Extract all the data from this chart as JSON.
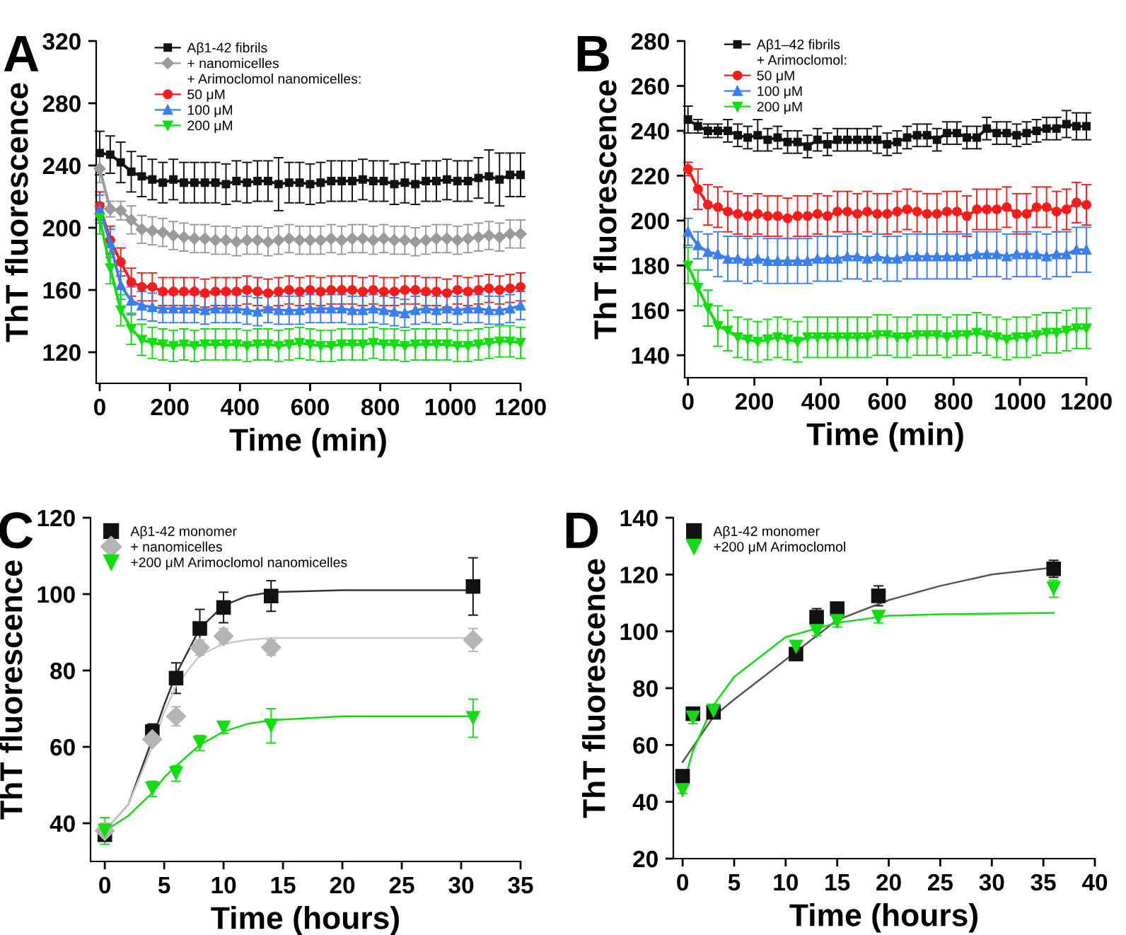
{
  "chart_data": [
    {
      "type": "line",
      "title": "A",
      "xlabel": "Time (min)",
      "ylabel": "ThT fluorescence",
      "xlim": [
        -10,
        1200
      ],
      "ylim": [
        100,
        320
      ],
      "xticks": [
        0,
        200,
        400,
        600,
        800,
        1000,
        1200
      ],
      "yticks": [
        120,
        160,
        200,
        240,
        280,
        320
      ],
      "legend": "top",
      "grid": false,
      "annotations": [
        "+ Arimoclomol nanomicelles:"
      ],
      "x": [
        0,
        30,
        60,
        90,
        120,
        150,
        180,
        210,
        240,
        270,
        300,
        330,
        360,
        390,
        420,
        450,
        480,
        510,
        540,
        570,
        600,
        630,
        660,
        690,
        720,
        750,
        780,
        810,
        840,
        870,
        900,
        930,
        960,
        990,
        1020,
        1050,
        1080,
        1110,
        1140,
        1170,
        1200
      ],
      "series": [
        {
          "name": "Aβ1-42 fibrils",
          "color": "#111111",
          "marker": "square",
          "values": [
            248,
            247,
            242,
            236,
            233,
            231,
            229,
            231,
            229,
            229,
            229,
            229,
            228,
            230,
            229,
            230,
            230,
            228,
            229,
            229,
            228,
            229,
            230,
            230,
            230,
            231,
            230,
            230,
            228,
            229,
            228,
            230,
            230,
            231,
            230,
            230,
            232,
            233,
            231,
            234,
            234
          ],
          "errors": [
            14,
            12,
            13,
            13,
            13,
            13,
            13,
            13,
            13,
            13,
            13,
            13,
            13,
            13,
            13,
            13,
            13,
            17,
            13,
            13,
            13,
            13,
            13,
            13,
            13,
            13,
            13,
            13,
            13,
            13,
            13,
            13,
            13,
            13,
            13,
            13,
            13,
            17,
            17,
            14,
            14
          ]
        },
        {
          "name": "+ nanomicelles",
          "color": "#9a9a9a",
          "marker": "diamond",
          "values": [
            238,
            212,
            211,
            205,
            199,
            198,
            197,
            195,
            194,
            193,
            193,
            192,
            192,
            191,
            192,
            192,
            191,
            192,
            193,
            192,
            192,
            192,
            193,
            192,
            193,
            193,
            192,
            193,
            192,
            192,
            191,
            192,
            193,
            193,
            192,
            193,
            194,
            195,
            194,
            196,
            196
          ],
          "errors": [
            9,
            5,
            6,
            9,
            9,
            9,
            9,
            9,
            9,
            9,
            9,
            9,
            9,
            9,
            9,
            9,
            9,
            9,
            9,
            9,
            9,
            9,
            9,
            9,
            9,
            9,
            9,
            9,
            9,
            9,
            9,
            9,
            9,
            9,
            9,
            9,
            9,
            9,
            9,
            9,
            9
          ]
        },
        {
          "name": "50 μM",
          "color": "#ff1a1a",
          "marker": "circle",
          "values": [
            214,
            192,
            178,
            165,
            162,
            162,
            159,
            159,
            159,
            159,
            158,
            159,
            159,
            159,
            160,
            159,
            158,
            159,
            160,
            159,
            160,
            159,
            160,
            160,
            160,
            159,
            160,
            159,
            159,
            160,
            160,
            159,
            159,
            158,
            160,
            159,
            160,
            161,
            160,
            161,
            162
          ],
          "errors": [
            9,
            9,
            9,
            9,
            9,
            9,
            9,
            9,
            9,
            9,
            9,
            9,
            9,
            9,
            9,
            9,
            9,
            9,
            9,
            9,
            9,
            9,
            9,
            9,
            9,
            9,
            9,
            9,
            9,
            9,
            9,
            9,
            9,
            9,
            9,
            9,
            9,
            9,
            9,
            9,
            9
          ]
        },
        {
          "name": "100 μM",
          "color": "#3a7ff0",
          "marker": "triangle",
          "values": [
            212,
            190,
            163,
            153,
            150,
            149,
            148,
            148,
            148,
            148,
            147,
            148,
            148,
            148,
            147,
            146,
            148,
            147,
            147,
            147,
            148,
            148,
            148,
            148,
            147,
            147,
            148,
            147,
            146,
            145,
            147,
            148,
            147,
            148,
            147,
            148,
            148,
            147,
            147,
            148,
            150
          ],
          "errors": [
            9,
            9,
            9,
            9,
            9,
            9,
            9,
            9,
            9,
            9,
            9,
            9,
            9,
            9,
            9,
            9,
            9,
            9,
            9,
            9,
            9,
            9,
            9,
            9,
            9,
            9,
            9,
            9,
            9,
            9,
            9,
            9,
            9,
            9,
            9,
            9,
            9,
            9,
            9,
            9,
            9
          ]
        },
        {
          "name": "200 μM",
          "color": "#11dd11",
          "marker": "triangle_down",
          "values": [
            206,
            174,
            147,
            135,
            128,
            126,
            125,
            124,
            125,
            124,
            125,
            125,
            125,
            125,
            124,
            125,
            125,
            124,
            125,
            126,
            125,
            124,
            124,
            125,
            125,
            125,
            126,
            125,
            125,
            124,
            125,
            125,
            125,
            125,
            124,
            124,
            125,
            126,
            127,
            127,
            126
          ],
          "errors": [
            10,
            10,
            10,
            10,
            10,
            10,
            10,
            10,
            10,
            10,
            10,
            10,
            10,
            10,
            10,
            10,
            10,
            10,
            10,
            10,
            10,
            10,
            10,
            10,
            10,
            10,
            10,
            10,
            10,
            10,
            10,
            10,
            10,
            10,
            10,
            10,
            10,
            10,
            10,
            10,
            10
          ]
        }
      ]
    },
    {
      "type": "line",
      "title": "B",
      "xlabel": "Time (min)",
      "ylabel": "ThT fluorescence",
      "xlim": [
        -10,
        1200
      ],
      "ylim": [
        130,
        280
      ],
      "xticks": [
        0,
        200,
        400,
        600,
        800,
        1000,
        1200
      ],
      "yticks": [
        140,
        160,
        180,
        200,
        220,
        240,
        260,
        280
      ],
      "legend": "top left",
      "grid": false,
      "annotations": [
        "+ Arimoclomol:"
      ],
      "x": [
        0,
        30,
        60,
        90,
        120,
        150,
        180,
        210,
        240,
        270,
        300,
        330,
        360,
        390,
        420,
        450,
        480,
        510,
        540,
        570,
        600,
        630,
        660,
        690,
        720,
        750,
        780,
        810,
        840,
        870,
        900,
        930,
        960,
        990,
        1020,
        1050,
        1080,
        1110,
        1140,
        1170,
        1200
      ],
      "series": [
        {
          "name": "Aβ1–42 fibrils",
          "color": "#111111",
          "marker": "square",
          "values": [
            245,
            242,
            240,
            240,
            240,
            238,
            237,
            238,
            236,
            237,
            235,
            235,
            233,
            236,
            234,
            236,
            236,
            236,
            236,
            236,
            234,
            235,
            237,
            238,
            238,
            236,
            239,
            239,
            237,
            237,
            241,
            239,
            239,
            238,
            239,
            240,
            241,
            241,
            243,
            242,
            242
          ],
          "errors": [
            6,
            3,
            3,
            3,
            5,
            5,
            5,
            7,
            5,
            5,
            5,
            5,
            5,
            5,
            5,
            5,
            5,
            5,
            5,
            6,
            5,
            5,
            5,
            5,
            5,
            5,
            5,
            5,
            5,
            5,
            5,
            5,
            5,
            5,
            5,
            5,
            5,
            5,
            6,
            6,
            6
          ]
        },
        {
          "name": "50 μM",
          "color": "#ff1a1a",
          "marker": "circle",
          "values": [
            223,
            214,
            207,
            206,
            204,
            203,
            202,
            203,
            202,
            202,
            201,
            202,
            202,
            203,
            202,
            204,
            204,
            203,
            204,
            203,
            203,
            204,
            205,
            204,
            203,
            203,
            204,
            204,
            202,
            205,
            205,
            205,
            206,
            203,
            203,
            206,
            206,
            204,
            205,
            208,
            207
          ],
          "errors": [
            3,
            9,
            9,
            9,
            9,
            9,
            9,
            9,
            9,
            9,
            9,
            9,
            9,
            9,
            9,
            9,
            9,
            9,
            9,
            9,
            9,
            9,
            9,
            9,
            9,
            9,
            9,
            9,
            9,
            9,
            9,
            9,
            9,
            9,
            9,
            9,
            9,
            9,
            9,
            9,
            9
          ]
        },
        {
          "name": "100 μM",
          "color": "#3a7ff0",
          "marker": "triangle",
          "values": [
            195,
            189,
            186,
            185,
            183,
            183,
            182,
            183,
            182,
            182,
            182,
            182,
            182,
            183,
            183,
            183,
            184,
            184,
            183,
            184,
            183,
            183,
            184,
            184,
            184,
            184,
            184,
            184,
            184,
            185,
            185,
            185,
            184,
            185,
            185,
            185,
            184,
            185,
            185,
            187,
            187
          ],
          "errors": [
            6,
            6,
            8,
            10,
            10,
            10,
            10,
            10,
            10,
            10,
            10,
            10,
            10,
            10,
            10,
            10,
            10,
            10,
            10,
            10,
            10,
            10,
            10,
            10,
            10,
            10,
            10,
            10,
            10,
            10,
            10,
            10,
            10,
            10,
            10,
            10,
            10,
            10,
            10,
            10,
            10
          ]
        },
        {
          "name": "200 μM",
          "color": "#11dd11",
          "marker": "triangle_down",
          "values": [
            180,
            170,
            161,
            153,
            151,
            148,
            147,
            146,
            147,
            148,
            147,
            146,
            148,
            148,
            148,
            148,
            148,
            148,
            148,
            149,
            149,
            148,
            148,
            149,
            149,
            149,
            148,
            149,
            149,
            150,
            149,
            148,
            147,
            148,
            148,
            149,
            150,
            150,
            151,
            152,
            152
          ],
          "errors": [
            8,
            8,
            8,
            9,
            9,
            9,
            9,
            9,
            9,
            9,
            9,
            9,
            9,
            9,
            9,
            9,
            9,
            9,
            9,
            9,
            9,
            9,
            9,
            9,
            9,
            9,
            9,
            9,
            9,
            9,
            9,
            9,
            9,
            9,
            9,
            9,
            9,
            9,
            9,
            9,
            9
          ]
        }
      ]
    },
    {
      "type": "scatter",
      "title": "C",
      "xlabel": "Time (hours)",
      "ylabel": "ThT fluorescence",
      "xlim": [
        -1.2,
        35
      ],
      "ylim": [
        30,
        120
      ],
      "xticks": [
        0,
        5,
        10,
        15,
        20,
        25,
        30,
        35
      ],
      "yticks": [
        40,
        60,
        80,
        100,
        120
      ],
      "legend": "top left",
      "grid": false,
      "x": [
        0,
        4,
        6,
        8,
        10,
        14,
        31
      ],
      "series": [
        {
          "name": "Aβ1-42 monomer",
          "color": "#111111",
          "marker": "square",
          "values": [
            37,
            64,
            78,
            91,
            96.5,
            99.5,
            102
          ],
          "errors": [
            null,
            2,
            4,
            5,
            4,
            4,
            7.5
          ]
        },
        {
          "name": "+ nanomicelles",
          "color": "#b4b4b4",
          "marker": "diamond",
          "values": [
            38,
            62,
            68,
            86,
            89,
            86,
            88
          ],
          "errors": [
            2,
            1,
            2.5,
            2,
            2,
            2,
            3
          ]
        },
        {
          "name": "+200 μM Arimoclomol nanomicelles",
          "color": "#11dd11",
          "marker": "triangle_down",
          "values": [
            38,
            49,
            53,
            61,
            65,
            65.5,
            67.5
          ],
          "errors": [
            3.5,
            2,
            2,
            2,
            1.5,
            4.5,
            5
          ]
        },
        {
          "type": "line",
          "color": "#333333",
          "x": [
            0,
            2,
            4,
            5,
            6,
            8,
            10,
            12,
            14,
            20,
            31
          ],
          "values": [
            38,
            45,
            62,
            71,
            79,
            91,
            97,
            99.5,
            100.5,
            101,
            101
          ]
        },
        {
          "type": "line",
          "color": "#c8c8c8",
          "x": [
            0,
            2,
            4,
            5,
            6,
            8,
            10,
            12,
            14,
            20,
            31
          ],
          "values": [
            38,
            45,
            60,
            69,
            76,
            84,
            87,
            88,
            88.5,
            88.5,
            88.5
          ]
        },
        {
          "type": "line",
          "color": "#11dd11",
          "x": [
            0,
            2,
            4,
            5,
            6,
            8,
            10,
            12,
            14,
            20,
            31
          ],
          "values": [
            38,
            42,
            48,
            52,
            55,
            60.5,
            64,
            66,
            67,
            68,
            68
          ]
        }
      ]
    },
    {
      "type": "scatter",
      "title": "D",
      "xlabel": "Time (hours)",
      "ylabel": "ThT fluorescence",
      "xlim": [
        -0.9,
        40
      ],
      "ylim": [
        20,
        140
      ],
      "xticks": [
        0,
        5,
        10,
        15,
        20,
        25,
        30,
        35,
        40
      ],
      "yticks": [
        20,
        40,
        60,
        80,
        100,
        120,
        140
      ],
      "legend": "top left",
      "grid": false,
      "x": [
        0,
        1,
        3,
        11,
        13,
        15,
        19,
        36
      ],
      "series": [
        {
          "name": "Aβ1-42 monomer",
          "color": "#111111",
          "marker": "square",
          "values": [
            49,
            71,
            71.5,
            92,
            105,
            108,
            112.5,
            122
          ],
          "errors": [
            1,
            2,
            1,
            1.5,
            3,
            2,
            3.5,
            3
          ]
        },
        {
          "name": "+200 μM Arimoclomol",
          "color": "#11dd11",
          "marker": "triangle_down",
          "values": [
            44,
            69.5,
            72,
            94.5,
            100,
            103.5,
            105,
            115
          ],
          "errors": [
            1,
            2,
            1,
            1.5,
            1.5,
            2,
            2,
            3
          ]
        },
        {
          "type": "line",
          "color": "#555555",
          "x": [
            0,
            3,
            5,
            10,
            15,
            20,
            25,
            30,
            36
          ],
          "values": [
            54,
            70,
            76,
            90,
            104,
            111,
            116,
            120,
            122.5
          ]
        },
        {
          "type": "line",
          "color": "#11dd11",
          "x": [
            0,
            1,
            3,
            5,
            10,
            15,
            20,
            25,
            36
          ],
          "values": [
            45,
            58,
            74,
            84,
            98,
            103,
            105.5,
            106,
            106.5
          ]
        }
      ]
    }
  ]
}
